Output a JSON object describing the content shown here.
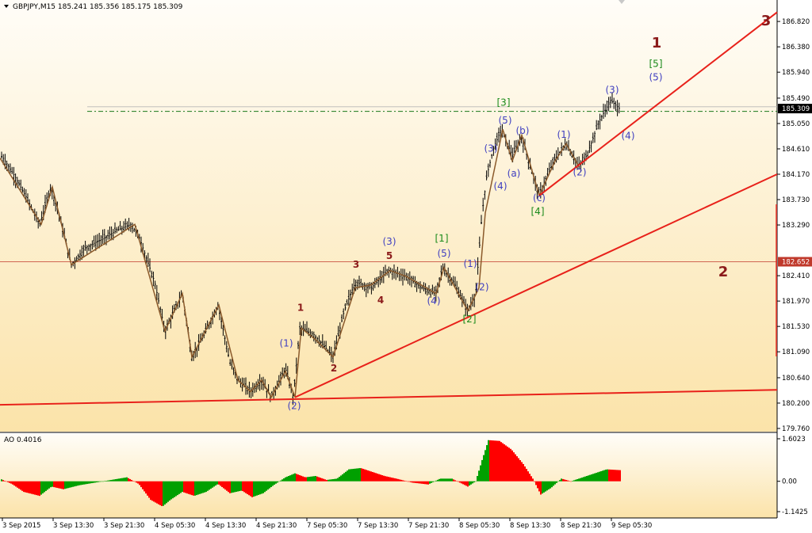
{
  "colors": {
    "background": "#ffffff",
    "pane": "#fbe3a9",
    "candle": "#000000",
    "wave_line": "#8b5a2b",
    "trend": "#e8211a",
    "dashdot": "#1a7a1a",
    "ao_up": "#00a000",
    "ao_down": "#ff0000",
    "label_blue": "#4040c0",
    "label_red": "#8b1a1a",
    "label_green": "#1a8a1a",
    "price_box": "#c0392b"
  },
  "chart_data": {
    "type": "candlestick",
    "symbol_line": "GBPJPY,M15  185.241 185.356 185.175 185.309",
    "ylim": [
      179.76,
      187.0
    ],
    "y_ticks": [
      "186.820",
      "186.380",
      "185.940",
      "185.490",
      "185.050",
      "184.610",
      "184.170",
      "183.730",
      "183.290",
      "182.410",
      "181.970",
      "181.530",
      "181.090",
      "180.640",
      "180.200",
      "179.760"
    ],
    "x_ticks": [
      "3 Sep 2015",
      "3 Sep 13:30",
      "3 Sep 21:30",
      "4 Sep 05:30",
      "4 Sep 13:30",
      "4 Sep 21:30",
      "7 Sep 05:30",
      "7 Sep 13:30",
      "7 Sep 21:30",
      "8 Sep 05:30",
      "8 Sep 13:30",
      "8 Sep 21:30",
      "9 Sep 05:30"
    ],
    "current_price": "185.309",
    "level_price": "182.652",
    "price_path": [
      [
        0,
        184.5
      ],
      [
        4,
        184.45
      ],
      [
        18,
        184.15
      ],
      [
        32,
        183.8
      ],
      [
        50,
        183.3
      ],
      [
        64,
        183.95
      ],
      [
        74,
        183.5
      ],
      [
        90,
        182.6
      ],
      [
        108,
        182.9
      ],
      [
        130,
        183.05
      ],
      [
        148,
        183.2
      ],
      [
        165,
        183.3
      ],
      [
        175,
        183.1
      ],
      [
        195,
        182.3
      ],
      [
        208,
        181.45
      ],
      [
        230,
        182.1
      ],
      [
        242,
        181.0
      ],
      [
        258,
        181.4
      ],
      [
        275,
        181.9
      ],
      [
        290,
        180.9
      ],
      [
        300,
        180.6
      ],
      [
        316,
        180.4
      ],
      [
        330,
        180.6
      ],
      [
        342,
        180.3
      ],
      [
        360,
        180.8
      ],
      [
        370,
        180.3
      ],
      [
        378,
        181.5
      ],
      [
        395,
        181.4
      ],
      [
        408,
        181.2
      ],
      [
        420,
        181.0
      ],
      [
        434,
        181.8
      ],
      [
        448,
        182.3
      ],
      [
        468,
        182.2
      ],
      [
        490,
        182.5
      ],
      [
        512,
        182.4
      ],
      [
        532,
        182.2
      ],
      [
        550,
        182.1
      ],
      [
        558,
        182.55
      ],
      [
        572,
        182.3
      ],
      [
        590,
        181.8
      ],
      [
        600,
        182.1
      ],
      [
        608,
        183.5
      ],
      [
        614,
        184.15
      ],
      [
        622,
        184.6
      ],
      [
        632,
        184.95
      ],
      [
        646,
        184.5
      ],
      [
        658,
        184.8
      ],
      [
        680,
        183.8
      ],
      [
        698,
        184.4
      ],
      [
        714,
        184.7
      ],
      [
        730,
        184.3
      ],
      [
        740,
        184.5
      ],
      [
        756,
        185.1
      ],
      [
        770,
        185.45
      ],
      [
        782,
        185.3
      ]
    ],
    "wave_polyline": [
      [
        0,
        184.45
      ],
      [
        52,
        183.3
      ],
      [
        66,
        183.95
      ],
      [
        90,
        182.6
      ],
      [
        170,
        183.3
      ],
      [
        208,
        181.45
      ],
      [
        230,
        182.1
      ],
      [
        242,
        181.0
      ],
      [
        276,
        181.9
      ],
      [
        300,
        180.6
      ],
      [
        316,
        180.4
      ],
      [
        330,
        180.6
      ],
      [
        342,
        180.3
      ],
      [
        360,
        180.75
      ],
      [
        372,
        180.3
      ],
      [
        380,
        181.5
      ],
      [
        398,
        181.3
      ],
      [
        420,
        181.0
      ],
      [
        448,
        182.2
      ],
      [
        468,
        182.25
      ],
      [
        492,
        182.5
      ],
      [
        512,
        182.4
      ],
      [
        550,
        182.1
      ],
      [
        560,
        182.55
      ],
      [
        590,
        181.8
      ],
      [
        604,
        182.2
      ],
      [
        612,
        183.5
      ],
      [
        634,
        184.95
      ],
      [
        646,
        184.4
      ],
      [
        658,
        184.85
      ],
      [
        680,
        183.8
      ],
      [
        700,
        184.4
      ],
      [
        714,
        184.7
      ],
      [
        730,
        184.3
      ]
    ],
    "trend_lines": [
      {
        "from": [
          0,
          180.17
        ],
        "to": [
          980,
          180.43
        ]
      },
      {
        "from": [
          372,
          180.3
        ],
        "to": [
          980,
          184.17
        ]
      },
      {
        "from": [
          680,
          183.8
        ],
        "to": [
          980,
          186.98
        ]
      }
    ],
    "level_lines": [
      {
        "price": 182.652,
        "style": "solid"
      },
      {
        "price": 185.34,
        "style": "solid"
      },
      {
        "price": 185.26,
        "style": "dashdot"
      }
    ],
    "wave_labels": [
      {
        "text": "(1)",
        "x": 361,
        "y": 181.18,
        "color": "blue",
        "size": "small"
      },
      {
        "text": "1",
        "x": 379,
        "y": 181.8,
        "color": "red",
        "size": "small"
      },
      {
        "text": "(2)",
        "x": 371,
        "y": 180.1,
        "color": "blue",
        "size": "small"
      },
      {
        "text": "2",
        "x": 421,
        "y": 180.75,
        "color": "red",
        "size": "small"
      },
      {
        "text": "3",
        "x": 449,
        "y": 182.55,
        "color": "red",
        "size": "small"
      },
      {
        "text": "4",
        "x": 480,
        "y": 181.93,
        "color": "red",
        "size": "small"
      },
      {
        "text": "5",
        "x": 491,
        "y": 182.7,
        "color": "red",
        "size": "small"
      },
      {
        "text": "(3)",
        "x": 491,
        "y": 182.95,
        "color": "blue",
        "size": "small"
      },
      {
        "text": "[1]",
        "x": 557,
        "y": 183.0,
        "color": "green",
        "size": "small"
      },
      {
        "text": "(5)",
        "x": 560,
        "y": 182.74,
        "color": "blue",
        "size": "small"
      },
      {
        "text": "(4)",
        "x": 547,
        "y": 181.92,
        "color": "blue",
        "size": "small"
      },
      {
        "text": "(1)",
        "x": 593,
        "y": 182.56,
        "color": "blue",
        "size": "small"
      },
      {
        "text": "(2)",
        "x": 608,
        "y": 182.16,
        "color": "blue",
        "size": "small"
      },
      {
        "text": "[2]",
        "x": 592,
        "y": 181.6,
        "color": "green",
        "size": "small"
      },
      {
        "text": "(3)",
        "x": 619,
        "y": 184.56,
        "color": "blue",
        "size": "small"
      },
      {
        "text": "(4)",
        "x": 631,
        "y": 183.91,
        "color": "blue",
        "size": "small"
      },
      {
        "text": "(a)",
        "x": 648,
        "y": 184.13,
        "color": "blue",
        "size": "small"
      },
      {
        "text": "(5)",
        "x": 637,
        "y": 185.05,
        "color": "blue",
        "size": "small"
      },
      {
        "text": "[3]",
        "x": 635,
        "y": 185.36,
        "color": "green",
        "size": "small"
      },
      {
        "text": "(b)",
        "x": 659,
        "y": 184.87,
        "color": "blue",
        "size": "small"
      },
      {
        "text": "(c)",
        "x": 680,
        "y": 183.7,
        "color": "blue",
        "size": "small"
      },
      {
        "text": "[4]",
        "x": 678,
        "y": 183.47,
        "color": "green",
        "size": "small"
      },
      {
        "text": "(1)",
        "x": 711,
        "y": 184.8,
        "color": "blue",
        "size": "small"
      },
      {
        "text": "(2)",
        "x": 731,
        "y": 184.15,
        "color": "blue",
        "size": "small"
      },
      {
        "text": "(3)",
        "x": 772,
        "y": 185.58,
        "color": "blue",
        "size": "small"
      },
      {
        "text": "(4)",
        "x": 792,
        "y": 184.78,
        "color": "blue",
        "size": "small"
      },
      {
        "text": "[5]",
        "x": 827,
        "y": 186.03,
        "color": "green",
        "size": "small"
      },
      {
        "text": "(5)",
        "x": 827,
        "y": 185.8,
        "color": "blue",
        "size": "small"
      },
      {
        "text": "1",
        "x": 828,
        "y": 186.37,
        "color": "red",
        "size": "big"
      },
      {
        "text": "3",
        "x": 966,
        "y": 186.75,
        "color": "red",
        "size": "big"
      },
      {
        "text": "2",
        "x": 912,
        "y": 182.4,
        "color": "red",
        "size": "big"
      }
    ],
    "ao": {
      "label": "AO 0.4016",
      "ylim": [
        -1.1425,
        1.6023
      ],
      "y_ticks": [
        "1.6023",
        "0.00",
        "-1.1425"
      ],
      "points": [
        [
          0,
          0.1
        ],
        [
          15,
          -0.1
        ],
        [
          30,
          -0.4
        ],
        [
          50,
          -0.55
        ],
        [
          65,
          -0.2
        ],
        [
          80,
          -0.3
        ],
        [
          100,
          -0.15
        ],
        [
          120,
          -0.05
        ],
        [
          140,
          0.05
        ],
        [
          160,
          0.15
        ],
        [
          175,
          -0.1
        ],
        [
          190,
          -0.7
        ],
        [
          205,
          -0.95
        ],
        [
          215,
          -0.7
        ],
        [
          230,
          -0.4
        ],
        [
          245,
          -0.55
        ],
        [
          260,
          -0.4
        ],
        [
          275,
          -0.1
        ],
        [
          290,
          -0.45
        ],
        [
          305,
          -0.35
        ],
        [
          318,
          -0.6
        ],
        [
          332,
          -0.45
        ],
        [
          345,
          -0.15
        ],
        [
          360,
          0.15
        ],
        [
          372,
          0.3
        ],
        [
          385,
          0.15
        ],
        [
          398,
          0.2
        ],
        [
          412,
          0.05
        ],
        [
          425,
          0.1
        ],
        [
          440,
          0.45
        ],
        [
          455,
          0.5
        ],
        [
          470,
          0.35
        ],
        [
          485,
          0.2
        ],
        [
          500,
          0.1
        ],
        [
          520,
          -0.05
        ],
        [
          540,
          -0.12
        ],
        [
          555,
          0.1
        ],
        [
          570,
          0.1
        ],
        [
          590,
          -0.2
        ],
        [
          600,
          0.0
        ],
        [
          608,
          0.8
        ],
        [
          616,
          1.55
        ],
        [
          630,
          1.52
        ],
        [
          645,
          1.2
        ],
        [
          660,
          0.65
        ],
        [
          672,
          0.1
        ],
        [
          682,
          -0.5
        ],
        [
          695,
          -0.25
        ],
        [
          708,
          0.1
        ],
        [
          720,
          0.0
        ],
        [
          735,
          0.15
        ],
        [
          750,
          0.3
        ],
        [
          765,
          0.45
        ],
        [
          782,
          0.42
        ]
      ]
    }
  }
}
